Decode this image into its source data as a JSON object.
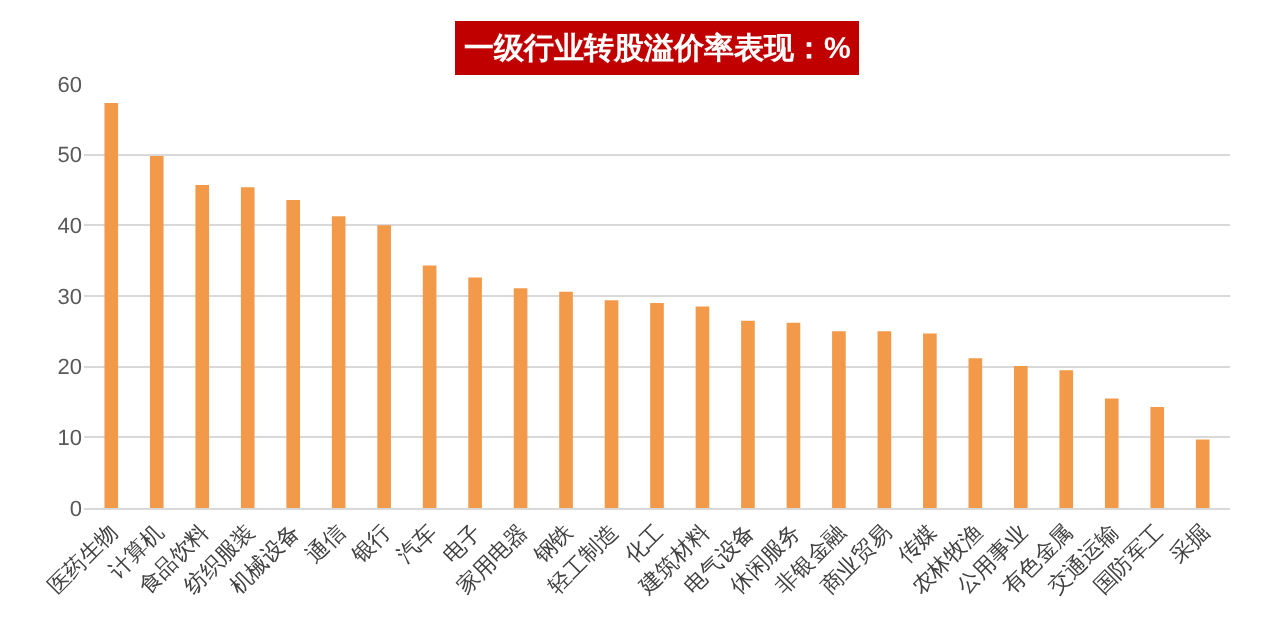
{
  "chart_data": {
    "type": "bar",
    "title": "一级行业转股溢价率表现：%",
    "categories": [
      "医药生物",
      "计算机",
      "食品饮料",
      "纺织服装",
      "机械设备",
      "通信",
      "银行",
      "汽车",
      "电子",
      "家用电器",
      "钢铁",
      "轻工制造",
      "化工",
      "建筑材料",
      "电气设备",
      "休闲服务",
      "非银金融",
      "商业贸易",
      "传媒",
      "农林牧渔",
      "公用事业",
      "有色金属",
      "交通运输",
      "国防军工",
      "采掘"
    ],
    "values": [
      57.3,
      49.8,
      45.7,
      45.4,
      43.6,
      41.3,
      40.0,
      34.3,
      32.6,
      31.1,
      30.6,
      29.4,
      29.0,
      28.5,
      26.5,
      26.2,
      25.0,
      25.0,
      24.7,
      21.2,
      20.1,
      19.5,
      15.5,
      14.3,
      9.7
    ],
    "color": "#f39a4a",
    "ylim": [
      0,
      60
    ],
    "yticks": [
      0,
      10,
      20,
      30,
      40,
      50,
      60
    ],
    "grid": "y"
  }
}
